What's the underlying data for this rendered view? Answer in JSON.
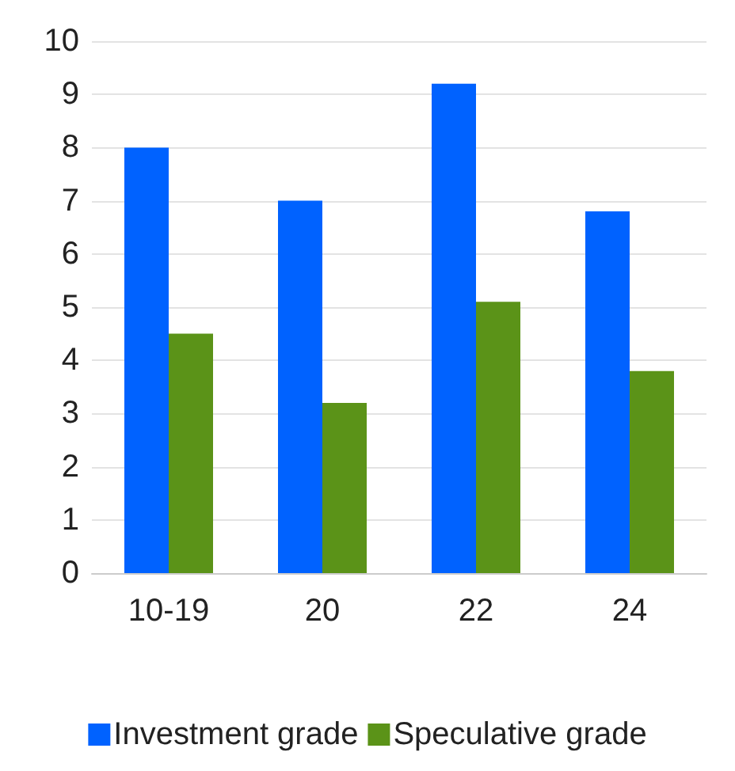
{
  "chart_data": {
    "type": "bar",
    "categories": [
      "10-19",
      "20",
      "22",
      "24"
    ],
    "series": [
      {
        "name": "Investment grade",
        "color": "#0062ff",
        "values": [
          8,
          7,
          9.2,
          6.8
        ]
      },
      {
        "name": "Speculative grade",
        "color": "#5b9318",
        "values": [
          4.5,
          3.2,
          5.1,
          3.8
        ]
      }
    ],
    "ylim": [
      0,
      10
    ],
    "yticks": [
      0,
      1,
      2,
      3,
      4,
      5,
      6,
      7,
      8,
      9,
      10
    ],
    "grid": "y",
    "legend": "bottom"
  }
}
